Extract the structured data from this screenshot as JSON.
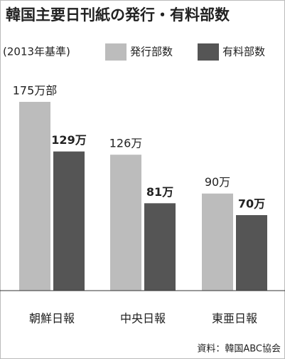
{
  "chart_data": {
    "type": "bar",
    "title": "韓国主要日刊紙の発行・有料部数",
    "subtitle": "(2013年基準)",
    "source": "資料：韓国ABC協会",
    "categories": [
      "朝鮮日報",
      "中央日報",
      "東亜日報"
    ],
    "series": [
      {
        "name": "発行部数",
        "color": "#bcbcbc",
        "values": [
          175,
          126,
          90
        ],
        "value_labels": [
          "175万部",
          "126万",
          "90万"
        ]
      },
      {
        "name": "有料部数",
        "color": "#555555",
        "values": [
          129,
          81,
          70
        ],
        "value_labels": [
          "129万",
          "81万",
          "70万"
        ]
      }
    ]
  }
}
